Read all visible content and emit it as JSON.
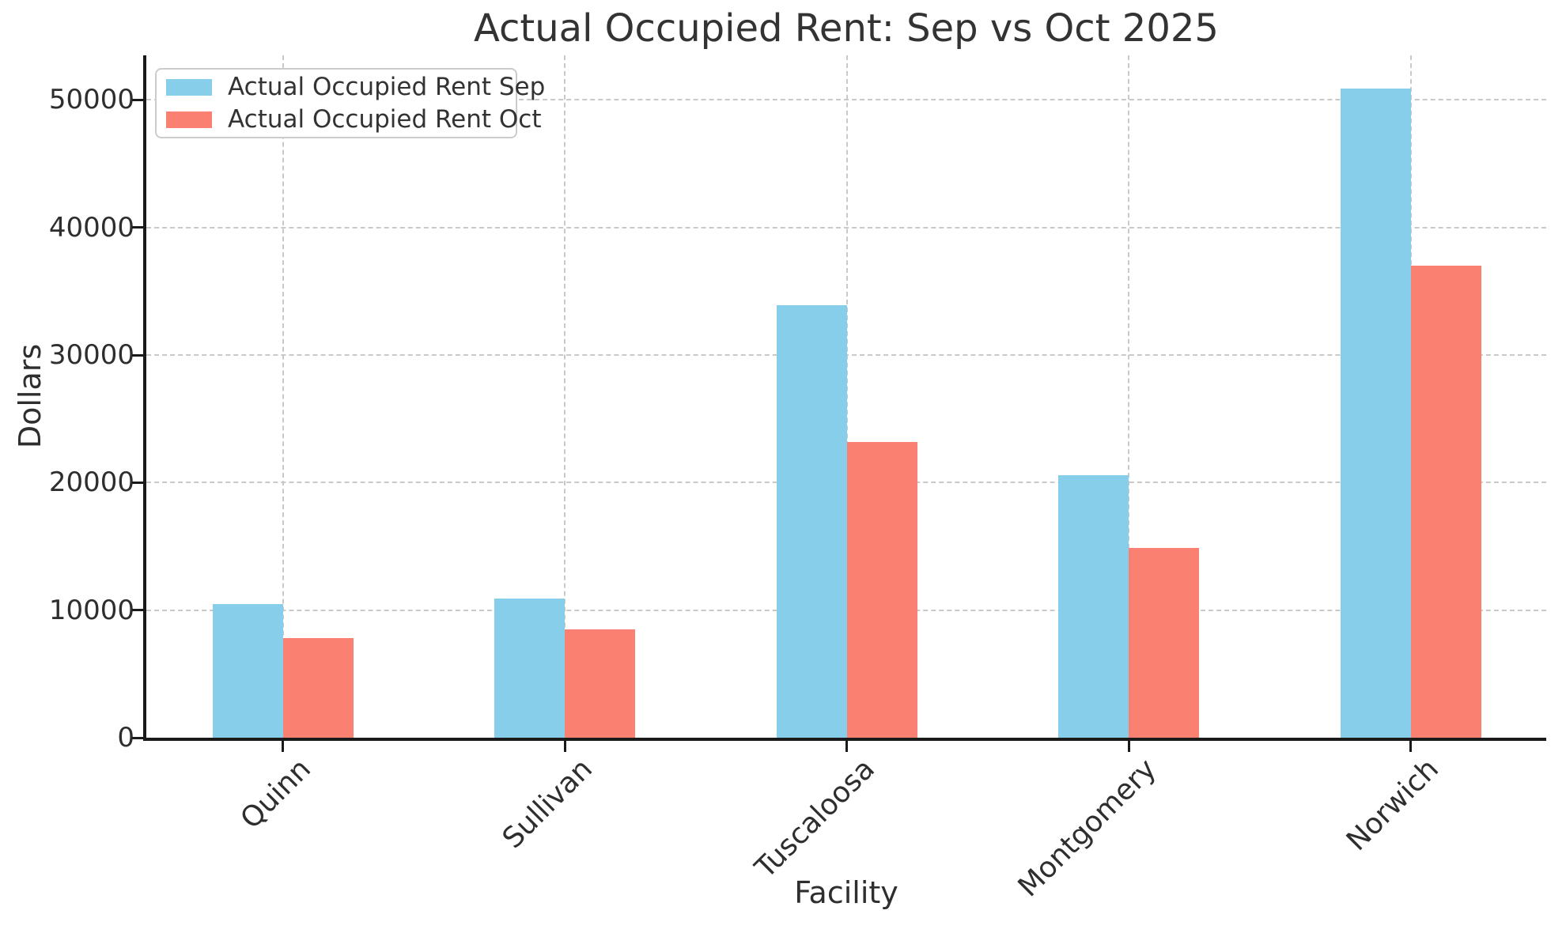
{
  "chart_data": {
    "type": "bar",
    "title": "Actual Occupied Rent: Sep vs Oct 2025",
    "xlabel": "Facility",
    "ylabel": "Dollars",
    "categories": [
      "Quinn",
      "Sullivan",
      "Tuscaloosa",
      "Montgomery",
      "Norwich"
    ],
    "series": [
      {
        "name": "Actual Occupied Rent Sep",
        "color": "#87CEEB",
        "values": [
          10500,
          10900,
          33900,
          20600,
          50900
        ]
      },
      {
        "name": "Actual Occupied Rent Oct",
        "color": "#FA8072",
        "values": [
          7800,
          8500,
          23200,
          14900,
          37000
        ]
      }
    ],
    "yticks": [
      0,
      10000,
      20000,
      30000,
      40000,
      50000
    ],
    "ytick_labels": [
      "0",
      "10000",
      "20000",
      "30000",
      "40000",
      "50000"
    ],
    "ylim": [
      0,
      53500
    ],
    "grid": "dashed horizontal and vertical",
    "legend_position": "upper left",
    "colors": {
      "grid": "#c9c9c9",
      "spine": "#1a1a1a",
      "text": "#2e2e2e",
      "title": "#333333",
      "background": "#ffffff"
    }
  }
}
